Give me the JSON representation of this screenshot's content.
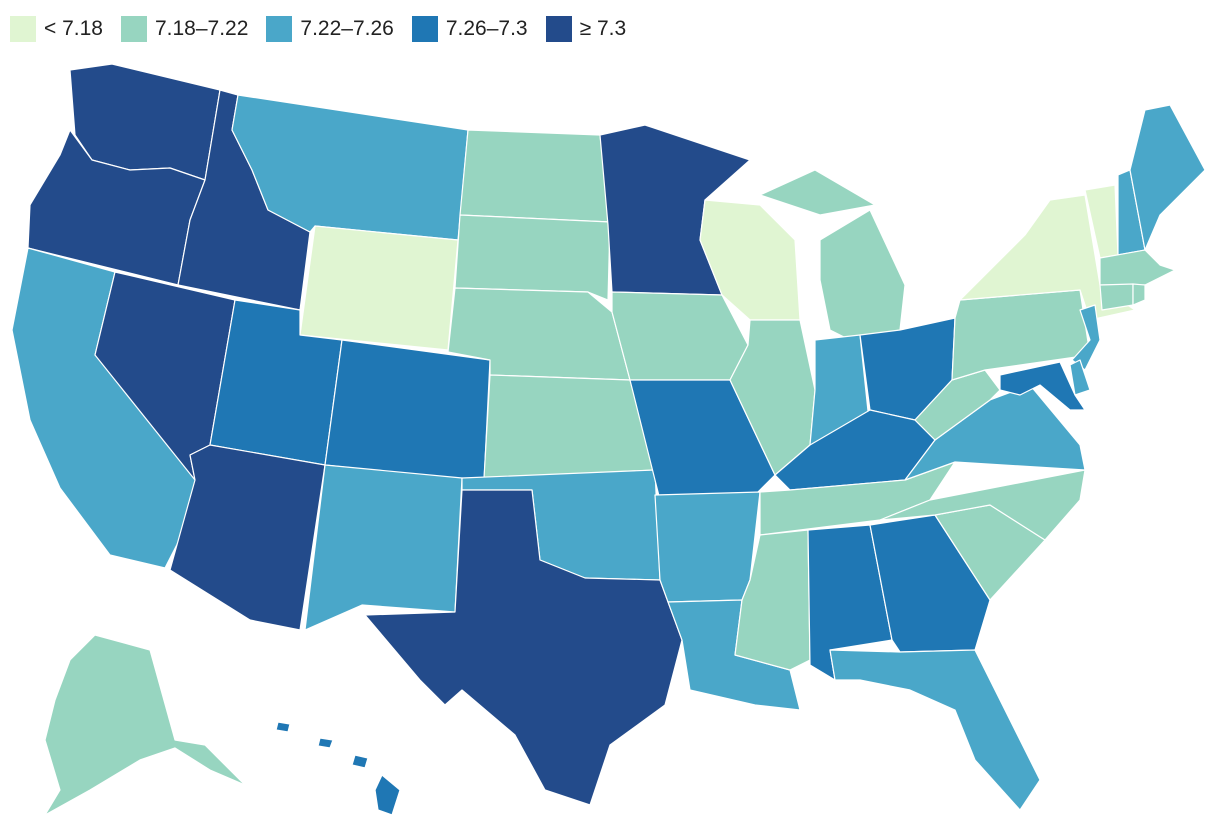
{
  "colors": {
    "lt_7_18": "#e0f5d2",
    "7_18_7_22": "#97d5c0",
    "7_22_7_26": "#4aa7c9",
    "7_26_7_3": "#1f77b4",
    "gte_7_3": "#234b8b"
  },
  "legend": [
    {
      "label": "< 7.18",
      "color": "#e0f5d2"
    },
    {
      "label": "7.18–7.22",
      "color": "#97d5c0"
    },
    {
      "label": "7.22–7.26",
      "color": "#4aa7c9"
    },
    {
      "label": "7.26–7.3",
      "color": "#1f77b4"
    },
    {
      "label": "≥ 7.3",
      "color": "#234b8b"
    }
  ],
  "states": [
    {
      "id": "WA",
      "bin": 4
    },
    {
      "id": "OR",
      "bin": 4
    },
    {
      "id": "CA",
      "bin": 2
    },
    {
      "id": "NV",
      "bin": 4
    },
    {
      "id": "ID",
      "bin": 4
    },
    {
      "id": "MT",
      "bin": 2
    },
    {
      "id": "WY",
      "bin": 0
    },
    {
      "id": "UT",
      "bin": 3
    },
    {
      "id": "CO",
      "bin": 3
    },
    {
      "id": "AZ",
      "bin": 4
    },
    {
      "id": "NM",
      "bin": 2
    },
    {
      "id": "ND",
      "bin": 1
    },
    {
      "id": "SD",
      "bin": 1
    },
    {
      "id": "NE",
      "bin": 1
    },
    {
      "id": "KS",
      "bin": 1
    },
    {
      "id": "OK",
      "bin": 2
    },
    {
      "id": "TX",
      "bin": 4
    },
    {
      "id": "MN",
      "bin": 4
    },
    {
      "id": "IA",
      "bin": 1
    },
    {
      "id": "MO",
      "bin": 3
    },
    {
      "id": "AR",
      "bin": 2
    },
    {
      "id": "LA",
      "bin": 2
    },
    {
      "id": "WI",
      "bin": 0
    },
    {
      "id": "IL",
      "bin": 1
    },
    {
      "id": "MI",
      "bin": 1
    },
    {
      "id": "IN",
      "bin": 2
    },
    {
      "id": "OH",
      "bin": 3
    },
    {
      "id": "KY",
      "bin": 3
    },
    {
      "id": "TN",
      "bin": 1
    },
    {
      "id": "MS",
      "bin": 1
    },
    {
      "id": "AL",
      "bin": 3
    },
    {
      "id": "GA",
      "bin": 3
    },
    {
      "id": "FL",
      "bin": 2
    },
    {
      "id": "SC",
      "bin": 1
    },
    {
      "id": "NC",
      "bin": 1
    },
    {
      "id": "VA",
      "bin": 2
    },
    {
      "id": "WV",
      "bin": 1
    },
    {
      "id": "PA",
      "bin": 1
    },
    {
      "id": "NY",
      "bin": 0
    },
    {
      "id": "VT",
      "bin": 0
    },
    {
      "id": "NH",
      "bin": 2
    },
    {
      "id": "ME",
      "bin": 2
    },
    {
      "id": "MA",
      "bin": 1
    },
    {
      "id": "CT",
      "bin": 1
    },
    {
      "id": "RI",
      "bin": 1
    },
    {
      "id": "NJ",
      "bin": 2
    },
    {
      "id": "DE",
      "bin": 2
    },
    {
      "id": "MD",
      "bin": 3
    },
    {
      "id": "AK",
      "bin": 1
    },
    {
      "id": "HI",
      "bin": 3
    }
  ]
}
